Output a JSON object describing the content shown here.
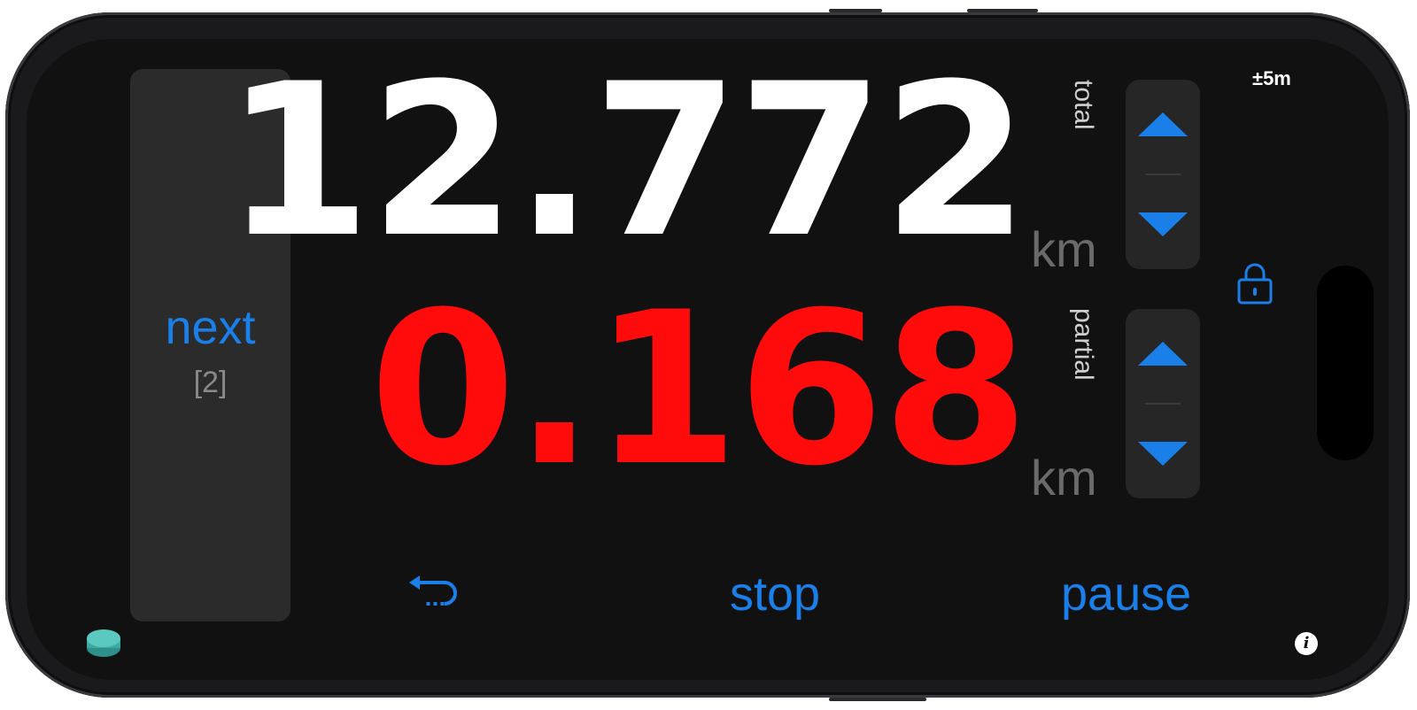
{
  "app": {
    "gps_accuracy": "±5m",
    "next": {
      "label": "next",
      "count": "[2]"
    },
    "total": {
      "value": "12.772",
      "unit": "km",
      "label": "total"
    },
    "partial": {
      "value": "0.168",
      "unit": "km",
      "label": "partial"
    },
    "actions": {
      "stop": "stop",
      "pause": "pause",
      "info": "i"
    },
    "icons": {
      "undo": "undo-arrow-icon",
      "lock": "padlock-icon",
      "up": "triangle-up-icon",
      "down": "triangle-down-icon",
      "puck": "assistive-touch-puck-icon",
      "info": "info-icon"
    },
    "colors": {
      "accent": "#1a7fe8",
      "total_digits": "#ffffff",
      "partial_digits": "#ff0b0b",
      "unit": "#6a6a6a",
      "background": "#111111"
    }
  }
}
